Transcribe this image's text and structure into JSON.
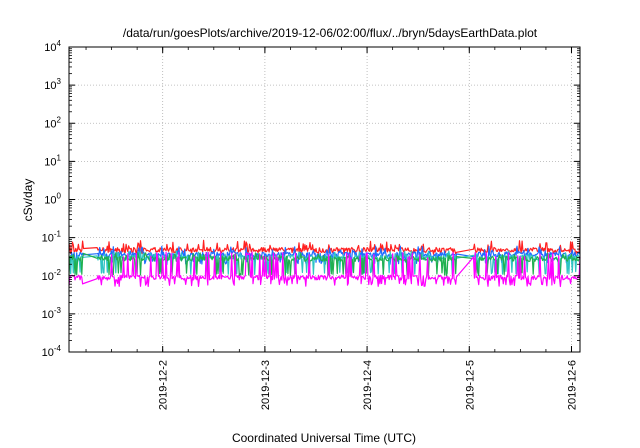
{
  "chart_data": {
    "type": "line",
    "title": "/data/run/goesPlots/archive/2019-12-06/02:00/flux/../bryn/5daysEarthData.plot",
    "xlabel": "Coordinated Universal Time (UTC)",
    "ylabel": "cSv/day",
    "yscale": "log",
    "ylim": [
      0.0001,
      10000
    ],
    "y_ticks": [
      {
        "value": 0.0001,
        "base": "10",
        "exp": "-4"
      },
      {
        "value": 0.001,
        "base": "10",
        "exp": "-3"
      },
      {
        "value": 0.01,
        "base": "10",
        "exp": "-2"
      },
      {
        "value": 0.1,
        "base": "10",
        "exp": "-1"
      },
      {
        "value": 1,
        "base": "10",
        "exp": "0"
      },
      {
        "value": 10,
        "base": "10",
        "exp": "1"
      },
      {
        "value": 100,
        "base": "10",
        "exp": "2"
      },
      {
        "value": 1000,
        "base": "10",
        "exp": "3"
      },
      {
        "value": 10000,
        "base": "10",
        "exp": "4"
      }
    ],
    "xlim": [
      "2019-12-01T02:00",
      "2019-12-06T02:00"
    ],
    "x_ticks": [
      "2019-12-2",
      "2019-12-3",
      "2019-12-4",
      "2019-12-5",
      "2019-12-6"
    ],
    "grid": true,
    "legend": "none",
    "gaps": [
      [
        "2019-12-01T05:30",
        "2019-12-01T08:30"
      ],
      [
        "2019-12-04T21:00",
        "2019-12-05T01:00"
      ]
    ],
    "series": [
      {
        "color": "#ff2020",
        "base": 0.048,
        "spike": 0.085,
        "dip": 0.04
      },
      {
        "color": "#1e6bff",
        "base": 0.036,
        "spike": 0.06,
        "dip": 0.022
      },
      {
        "color": "#2ec4c4",
        "base": 0.03,
        "spike": 0.045,
        "dip": 0.012
      },
      {
        "color": "#20b050",
        "base": 0.028,
        "spike": 0.04,
        "dip": 0.011
      },
      {
        "color": "#ff00ff",
        "base": 0.009,
        "spike": 0.042,
        "dip": 0.0058
      }
    ]
  }
}
